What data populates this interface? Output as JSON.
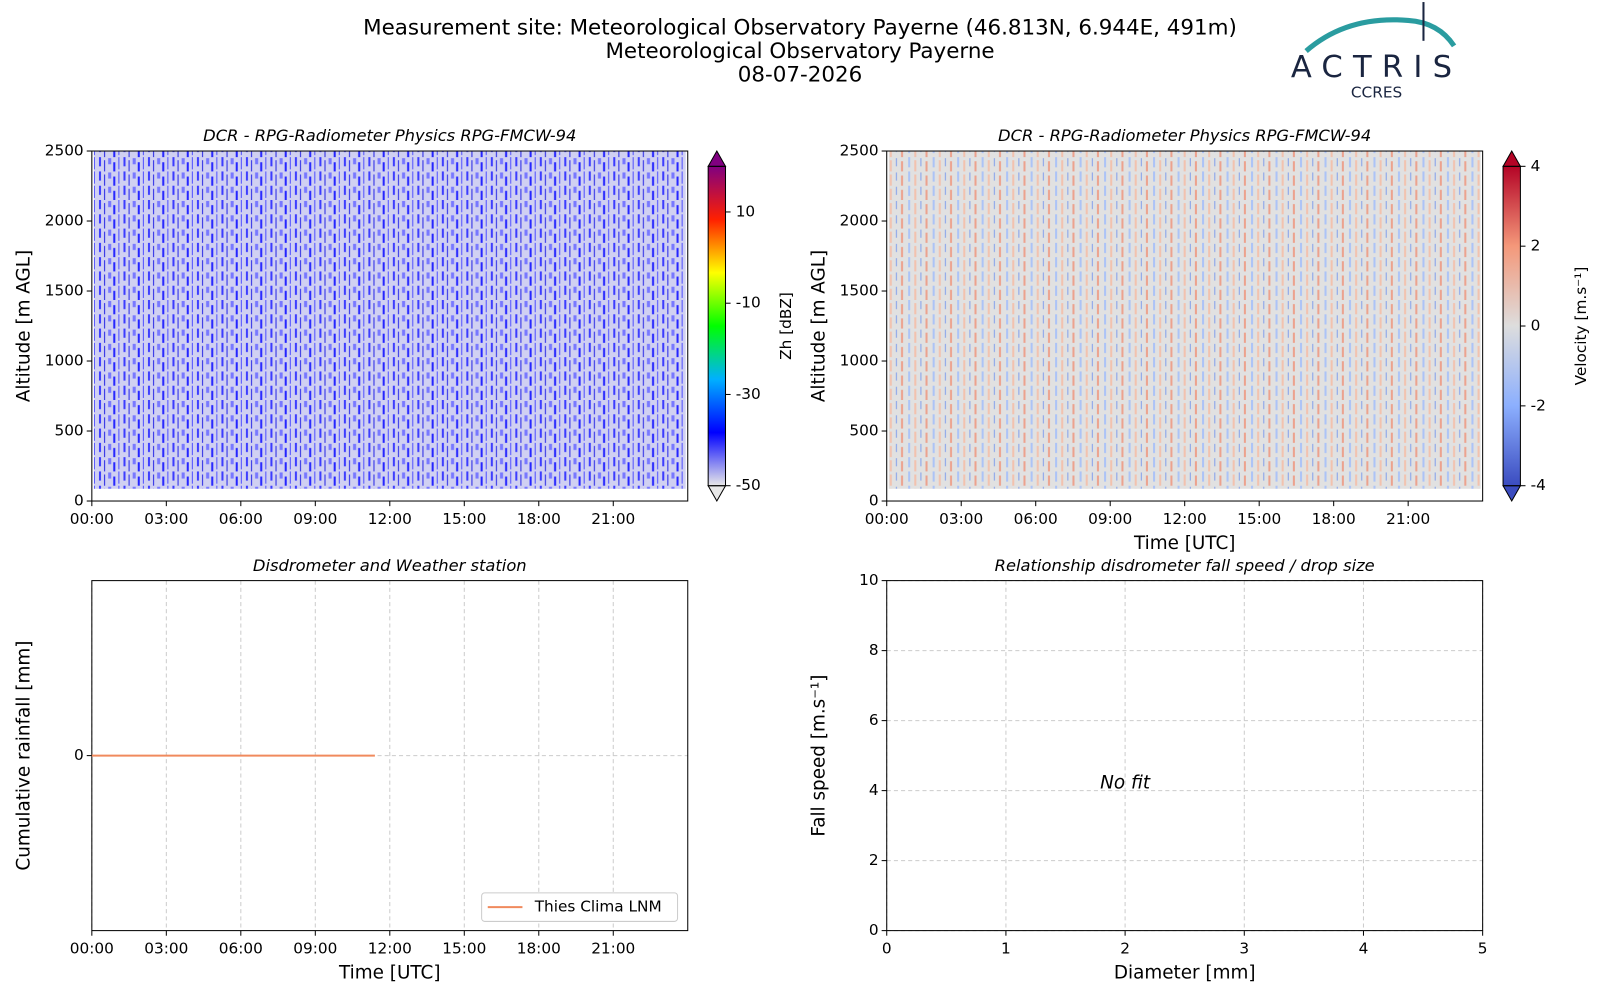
{
  "header": {
    "title_lines": [
      "Measurement site: Meteorological Observatory Payerne (46.813N, 6.944E, 491m)",
      "Meteorological Observatory Payerne",
      "08-07-2026"
    ],
    "logo": "ACTRIS",
    "logo_sub": "CCRES"
  },
  "chart_data": [
    {
      "type": "heatmap",
      "title": "DCR - RPG-Radiometer Physics RPG-FMCW-94",
      "ylabel": "Altitude [m AGL]",
      "xlim": [
        0,
        24
      ],
      "xticks": [
        {
          "value": 0,
          "label": "00:00"
        },
        {
          "value": 3,
          "label": "03:00"
        },
        {
          "value": 6,
          "label": "06:00"
        },
        {
          "value": 9,
          "label": "09:00"
        },
        {
          "value": 12,
          "label": "12:00"
        },
        {
          "value": 15,
          "label": "15:00"
        },
        {
          "value": 18,
          "label": "18:00"
        },
        {
          "value": 21,
          "label": "21:00"
        }
      ],
      "ylim": [
        0,
        2500
      ],
      "yticks": [
        0,
        500,
        1000,
        1500,
        2000,
        2500
      ],
      "grid": false,
      "colorbar": {
        "label": "Zh [dBZ]",
        "lim": [
          -50,
          20
        ],
        "ticks": [
          -50,
          -30,
          -10,
          10
        ],
        "colors": [
          "#e8e8e8",
          "#0000ff",
          "#00b0ff",
          "#00ff00",
          "#ffff00",
          "#ff2000",
          "#800080"
        ]
      }
    },
    {
      "type": "heatmap",
      "title": "DCR - RPG-Radiometer Physics RPG-FMCW-94",
      "ylabel": "Altitude [m AGL]",
      "xlabel": "Time [UTC]",
      "xlim": [
        0,
        24
      ],
      "xticks": [
        {
          "value": 0,
          "label": "00:00"
        },
        {
          "value": 3,
          "label": "03:00"
        },
        {
          "value": 6,
          "label": "06:00"
        },
        {
          "value": 9,
          "label": "09:00"
        },
        {
          "value": 12,
          "label": "12:00"
        },
        {
          "value": 15,
          "label": "15:00"
        },
        {
          "value": 18,
          "label": "18:00"
        },
        {
          "value": 21,
          "label": "21:00"
        }
      ],
      "ylim": [
        0,
        2500
      ],
      "yticks": [
        0,
        500,
        1000,
        1500,
        2000,
        2500
      ],
      "grid": false,
      "colorbar": {
        "label": "Velocity [m.s⁻¹]",
        "lim": [
          -4,
          4
        ],
        "ticks": [
          -4,
          -2,
          0,
          2,
          4
        ],
        "colors": [
          "#3b4cc0",
          "#8caffe",
          "#dddddd",
          "#f4987a",
          "#b40426"
        ]
      }
    },
    {
      "type": "line",
      "title": "Disdrometer and Weather station",
      "ylabel": "Cumulative rainfall [mm]",
      "xlabel": "Time [UTC]",
      "xlim": [
        0,
        24
      ],
      "xticks": [
        {
          "value": 0,
          "label": "00:00"
        },
        {
          "value": 3,
          "label": "03:00"
        },
        {
          "value": 6,
          "label": "06:00"
        },
        {
          "value": 9,
          "label": "09:00"
        },
        {
          "value": 12,
          "label": "12:00"
        },
        {
          "value": 15,
          "label": "15:00"
        },
        {
          "value": 18,
          "label": "18:00"
        },
        {
          "value": 21,
          "label": "21:00"
        }
      ],
      "ylim": [
        -1,
        1
      ],
      "yticks": [
        0
      ],
      "grid": true,
      "legend": "lower right",
      "series": [
        {
          "name": "Thies Clima LNM",
          "color": "#f08a5d",
          "x": [
            0,
            11.4
          ],
          "values": [
            0,
            0
          ]
        }
      ]
    },
    {
      "type": "scatter",
      "title": "Relationship disdrometer fall speed / drop size",
      "ylabel": "Fall speed [m.s⁻¹]",
      "xlabel": "Diameter [mm]",
      "xlim": [
        0,
        5
      ],
      "xticks": [
        0,
        1,
        2,
        3,
        4,
        5
      ],
      "ylim": [
        0,
        10
      ],
      "yticks": [
        0,
        2,
        4,
        6,
        8,
        10
      ],
      "grid": true,
      "annotation": "No fit",
      "series": []
    }
  ]
}
